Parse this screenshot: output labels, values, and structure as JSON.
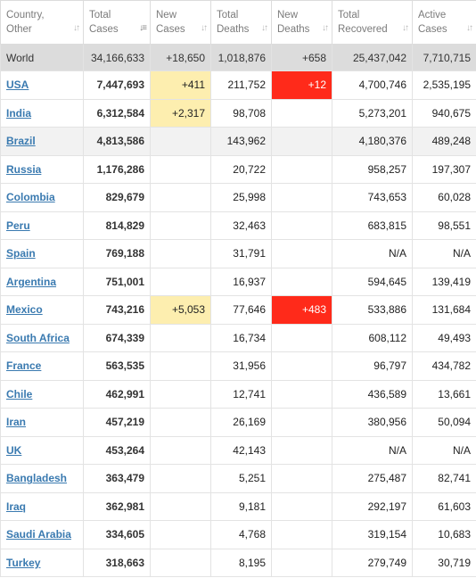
{
  "headers": [
    {
      "line1": "Country,",
      "line2": "Other"
    },
    {
      "line1": "Total",
      "line2": "Cases"
    },
    {
      "line1": "New",
      "line2": "Cases"
    },
    {
      "line1": "Total",
      "line2": "Deaths"
    },
    {
      "line1": "New",
      "line2": "Deaths"
    },
    {
      "line1": "Total",
      "line2": "Recovered"
    },
    {
      "line1": "Active",
      "line2": "Cases"
    }
  ],
  "world": {
    "country": "World",
    "total_cases": "34,166,633",
    "new_cases": "+18,650",
    "total_deaths": "1,018,876",
    "new_deaths": "+658",
    "total_recovered": "25,437,042",
    "active_cases": "7,710,715"
  },
  "rows": [
    {
      "country": "USA",
      "total_cases": "7,447,693",
      "new_cases": "+411",
      "total_deaths": "211,752",
      "new_deaths": "+12",
      "total_recovered": "4,700,746",
      "active_cases": "2,535,195"
    },
    {
      "country": "India",
      "total_cases": "6,312,584",
      "new_cases": "+2,317",
      "total_deaths": "98,708",
      "new_deaths": "",
      "total_recovered": "5,273,201",
      "active_cases": "940,675"
    },
    {
      "country": "Brazil",
      "total_cases": "4,813,586",
      "new_cases": "",
      "total_deaths": "143,962",
      "new_deaths": "",
      "total_recovered": "4,180,376",
      "active_cases": "489,248"
    },
    {
      "country": "Russia",
      "total_cases": "1,176,286",
      "new_cases": "",
      "total_deaths": "20,722",
      "new_deaths": "",
      "total_recovered": "958,257",
      "active_cases": "197,307"
    },
    {
      "country": "Colombia",
      "total_cases": "829,679",
      "new_cases": "",
      "total_deaths": "25,998",
      "new_deaths": "",
      "total_recovered": "743,653",
      "active_cases": "60,028"
    },
    {
      "country": "Peru",
      "total_cases": "814,829",
      "new_cases": "",
      "total_deaths": "32,463",
      "new_deaths": "",
      "total_recovered": "683,815",
      "active_cases": "98,551"
    },
    {
      "country": "Spain",
      "total_cases": "769,188",
      "new_cases": "",
      "total_deaths": "31,791",
      "new_deaths": "",
      "total_recovered": "N/A",
      "active_cases": "N/A"
    },
    {
      "country": "Argentina",
      "total_cases": "751,001",
      "new_cases": "",
      "total_deaths": "16,937",
      "new_deaths": "",
      "total_recovered": "594,645",
      "active_cases": "139,419"
    },
    {
      "country": "Mexico",
      "total_cases": "743,216",
      "new_cases": "+5,053",
      "total_deaths": "77,646",
      "new_deaths": "+483",
      "total_recovered": "533,886",
      "active_cases": "131,684"
    },
    {
      "country": "South Africa",
      "total_cases": "674,339",
      "new_cases": "",
      "total_deaths": "16,734",
      "new_deaths": "",
      "total_recovered": "608,112",
      "active_cases": "49,493"
    },
    {
      "country": "France",
      "total_cases": "563,535",
      "new_cases": "",
      "total_deaths": "31,956",
      "new_deaths": "",
      "total_recovered": "96,797",
      "active_cases": "434,782"
    },
    {
      "country": "Chile",
      "total_cases": "462,991",
      "new_cases": "",
      "total_deaths": "12,741",
      "new_deaths": "",
      "total_recovered": "436,589",
      "active_cases": "13,661"
    },
    {
      "country": "Iran",
      "total_cases": "457,219",
      "new_cases": "",
      "total_deaths": "26,169",
      "new_deaths": "",
      "total_recovered": "380,956",
      "active_cases": "50,094"
    },
    {
      "country": "UK",
      "total_cases": "453,264",
      "new_cases": "",
      "total_deaths": "42,143",
      "new_deaths": "",
      "total_recovered": "N/A",
      "active_cases": "N/A"
    },
    {
      "country": "Bangladesh",
      "total_cases": "363,479",
      "new_cases": "",
      "total_deaths": "5,251",
      "new_deaths": "",
      "total_recovered": "275,487",
      "active_cases": "82,741"
    },
    {
      "country": "Iraq",
      "total_cases": "362,981",
      "new_cases": "",
      "total_deaths": "9,181",
      "new_deaths": "",
      "total_recovered": "292,197",
      "active_cases": "61,603"
    },
    {
      "country": "Saudi Arabia",
      "total_cases": "334,605",
      "new_cases": "",
      "total_deaths": "4,768",
      "new_deaths": "",
      "total_recovered": "319,154",
      "active_cases": "10,683"
    },
    {
      "country": "Turkey",
      "total_cases": "318,663",
      "new_cases": "",
      "total_deaths": "8,195",
      "new_deaths": "",
      "total_recovered": "279,749",
      "active_cases": "30,719"
    }
  ],
  "sort_icon": "sort-arrows-icon",
  "active_sort_icon": "sort-descending-icon",
  "colors": {
    "new_cases_highlight": "#fdeeaf",
    "new_deaths_highlight": "#ff2a1a",
    "link": "#3a7ab0",
    "world_row": "#dcdcdc"
  }
}
